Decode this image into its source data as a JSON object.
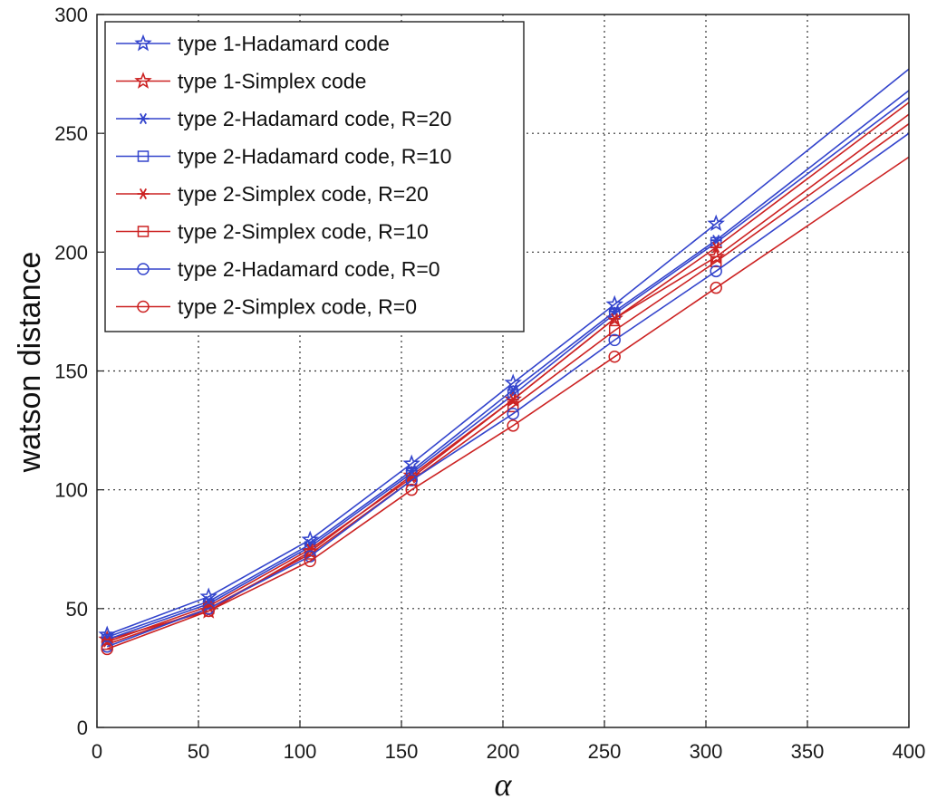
{
  "chart_data": {
    "type": "line",
    "title": "",
    "xlabel": "α",
    "ylabel": "watson distance",
    "xlim": [
      0,
      400
    ],
    "ylim": [
      0,
      300
    ],
    "xticks": [
      0,
      50,
      100,
      150,
      200,
      250,
      300,
      350,
      400
    ],
    "yticks": [
      0,
      50,
      100,
      150,
      200,
      250,
      300
    ],
    "grid": true,
    "legend_position": "top-left",
    "series": [
      {
        "name": "type 1-Hadamard code",
        "color": "#3344cc",
        "marker": "star5",
        "x": [
          5,
          55,
          105,
          155,
          205,
          255,
          305,
          400
        ],
        "y": [
          39,
          55,
          79,
          111,
          145,
          178,
          212,
          277
        ]
      },
      {
        "name": "type 1-Simplex code",
        "color": "#cc2222",
        "marker": "star5",
        "x": [
          5,
          55,
          105,
          155,
          205,
          255,
          305,
          400
        ],
        "y": [
          37,
          49,
          74,
          106,
          138,
          172,
          198,
          258
        ]
      },
      {
        "name": "type 2-Hadamard code, R=20",
        "color": "#3344cc",
        "marker": "asterisk",
        "x": [
          5,
          55,
          105,
          155,
          205,
          255,
          305,
          400
        ],
        "y": [
          38,
          53,
          77,
          108,
          142,
          175,
          205,
          268
        ]
      },
      {
        "name": "type 2-Hadamard code, R=10",
        "color": "#3344cc",
        "marker": "square",
        "x": [
          5,
          55,
          105,
          155,
          205,
          255,
          305,
          400
        ],
        "y": [
          37,
          52,
          76,
          107,
          140,
          174,
          204,
          265
        ]
      },
      {
        "name": "type 2-Simplex code, R=20",
        "color": "#cc2222",
        "marker": "asterisk",
        "x": [
          5,
          55,
          105,
          155,
          205,
          255,
          305,
          400
        ],
        "y": [
          36,
          51,
          75,
          105,
          138,
          172,
          202,
          263
        ]
      },
      {
        "name": "type 2-Simplex code, R=10",
        "color": "#cc2222",
        "marker": "square",
        "x": [
          5,
          55,
          105,
          155,
          205,
          255,
          305,
          400
        ],
        "y": [
          35,
          50,
          73,
          104,
          135,
          167,
          196,
          254
        ]
      },
      {
        "name": "type 2-Hadamard code, R=0",
        "color": "#3344cc",
        "marker": "circle",
        "x": [
          5,
          55,
          105,
          155,
          205,
          255,
          305,
          400
        ],
        "y": [
          34,
          50,
          72,
          104,
          132,
          163,
          192,
          250
        ]
      },
      {
        "name": "type 2-Simplex code, R=0",
        "color": "#cc2222",
        "marker": "circle",
        "x": [
          5,
          55,
          105,
          155,
          205,
          255,
          305,
          400
        ],
        "y": [
          33,
          49,
          70,
          100,
          127,
          156,
          185,
          240
        ]
      }
    ]
  }
}
